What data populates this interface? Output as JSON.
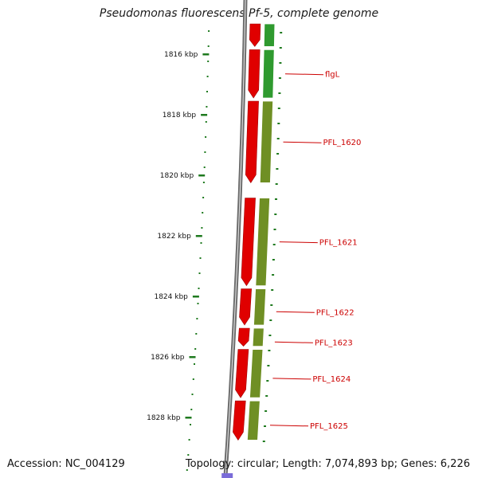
{
  "title": "Pseudomonas fluorescens Pf-5, complete genome",
  "footer": {
    "accession": "Accession: NC_004129",
    "stats": "Topology: circular; Length: 7,074,893 bp; Genes: 6,226"
  },
  "colors": {
    "backbone": "#8a8a8a",
    "cds_forward": "#e00000",
    "cds_forward_dark": "#a00000",
    "feature_green": "#2f9a2f",
    "feature_olive": "#6f8f24",
    "tick": "#1f7a1f",
    "label_red": "#cc0000",
    "blue_feature": "#7a6cd8"
  },
  "ticks": [
    {
      "label": "1816 kbp",
      "kbp": 1816
    },
    {
      "label": "1818 kbp",
      "kbp": 1818
    },
    {
      "label": "1820 kbp",
      "kbp": 1820
    },
    {
      "label": "1822 kbp",
      "kbp": 1822
    },
    {
      "label": "1824 kbp",
      "kbp": 1824
    },
    {
      "label": "1826 kbp",
      "kbp": 1826
    },
    {
      "label": "1828 kbp",
      "kbp": 1828
    }
  ],
  "genes": [
    {
      "name": "",
      "start_kbp": 1814.8,
      "end_kbp": 1815.8,
      "color": "green"
    },
    {
      "name": "flgL",
      "start_kbp": 1815.8,
      "end_kbp": 1817.5,
      "color": "green"
    },
    {
      "name": "PFL_1620",
      "start_kbp": 1817.5,
      "end_kbp": 1820.3,
      "color": "olive"
    },
    {
      "name": "PFL_1621",
      "start_kbp": 1820.7,
      "end_kbp": 1823.7,
      "color": "olive"
    },
    {
      "name": "PFL_1622",
      "start_kbp": 1823.7,
      "end_kbp": 1825.0,
      "color": "olive"
    },
    {
      "name": "PFL_1623",
      "start_kbp": 1825.0,
      "end_kbp": 1825.7,
      "color": "olive"
    },
    {
      "name": "PFL_1624",
      "start_kbp": 1825.7,
      "end_kbp": 1827.4,
      "color": "olive"
    },
    {
      "name": "PFL_1625",
      "start_kbp": 1827.4,
      "end_kbp": 1828.8,
      "color": "olive"
    }
  ]
}
